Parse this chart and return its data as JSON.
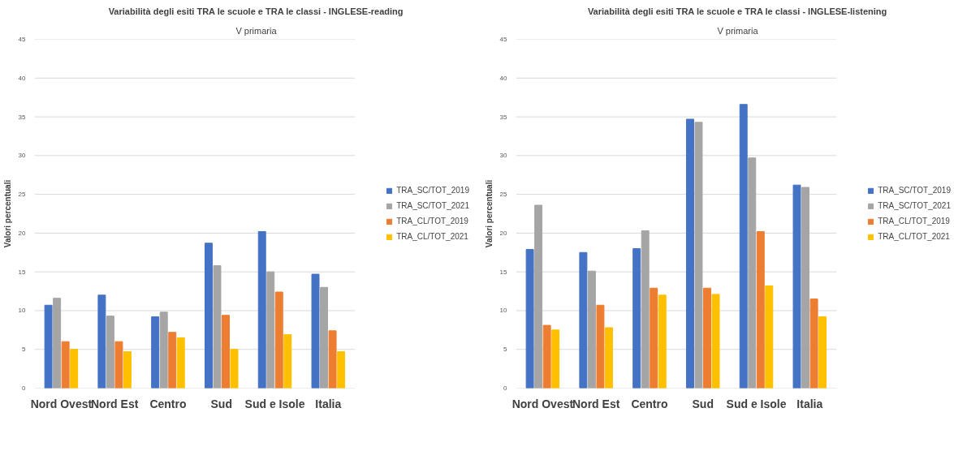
{
  "chart_data": [
    {
      "type": "bar",
      "title": "Variabilità degli esiti TRA le scuole e TRA le classi - INGLESE-reading",
      "subtitle": "V primaria",
      "ylabel": "Valori percentuali",
      "categories": [
        "Nord Ovest",
        "Nord Est",
        "Centro",
        "Sud",
        "Sud e Isole",
        "Italia"
      ],
      "series": [
        {
          "name": "TRA_SC/TOT_2019",
          "color": "#4472c4",
          "values": [
            10.7,
            12.0,
            9.2,
            18.7,
            20.2,
            14.7
          ]
        },
        {
          "name": "TRA_SC/TOT_2021",
          "color": "#a5a5a5",
          "values": [
            11.6,
            9.3,
            9.8,
            15.8,
            15.0,
            13.0
          ]
        },
        {
          "name": "TRA_CL/TOT_2019",
          "color": "#ed7d31",
          "values": [
            6.0,
            6.0,
            7.2,
            9.4,
            12.4,
            7.4
          ]
        },
        {
          "name": "TRA_CL/TOT_2021",
          "color": "#ffc000",
          "values": [
            5.0,
            4.7,
            6.5,
            5.0,
            6.9,
            4.7
          ]
        }
      ],
      "ylim": [
        0,
        45
      ],
      "yticks": [
        0,
        5,
        10,
        15,
        20,
        25,
        30,
        35,
        40,
        45
      ],
      "grid": "y",
      "legend": "right"
    },
    {
      "type": "bar",
      "title": "Variabilità degli esiti TRA le scuole e TRA le classi - INGLESE-listening",
      "subtitle": "V primaria",
      "ylabel": "Valori percentuali",
      "categories": [
        "Nord Ovest",
        "Nord Est",
        "Centro",
        "Sud",
        "Sud e Isole",
        "Italia"
      ],
      "series": [
        {
          "name": "TRA_SC/TOT_2019",
          "color": "#4472c4",
          "values": [
            17.9,
            17.5,
            18.0,
            34.7,
            36.6,
            26.2
          ]
        },
        {
          "name": "TRA_SC/TOT_2021",
          "color": "#a5a5a5",
          "values": [
            23.6,
            15.1,
            20.3,
            34.3,
            29.7,
            25.9
          ]
        },
        {
          "name": "TRA_CL/TOT_2019",
          "color": "#ed7d31",
          "values": [
            8.1,
            10.7,
            12.9,
            12.9,
            20.2,
            11.5
          ]
        },
        {
          "name": "TRA_CL/TOT_2021",
          "color": "#ffc000",
          "values": [
            7.5,
            7.8,
            12.0,
            12.1,
            13.2,
            9.2
          ]
        }
      ],
      "ylim": [
        0,
        45
      ],
      "yticks": [
        0,
        5,
        10,
        15,
        20,
        25,
        30,
        35,
        40,
        45
      ],
      "grid": "y",
      "legend": "right"
    }
  ]
}
